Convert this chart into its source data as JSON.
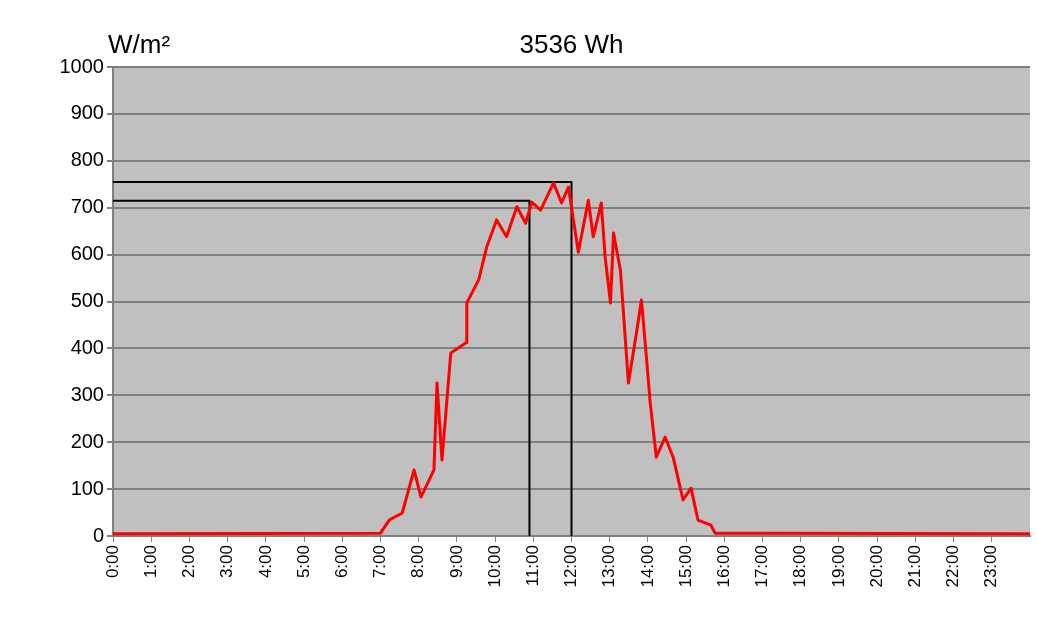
{
  "chart_data": {
    "type": "line",
    "title": "3536 Wh",
    "ylabel": "W/m²",
    "xlim": [
      0,
      24
    ],
    "xticks": [
      {
        "value": 0,
        "label": "0:00"
      },
      {
        "value": 1,
        "label": "1:00"
      },
      {
        "value": 2,
        "label": "2:00"
      },
      {
        "value": 3,
        "label": "3:00"
      },
      {
        "value": 4,
        "label": "4:00"
      },
      {
        "value": 5,
        "label": "5:00"
      },
      {
        "value": 6,
        "label": "6:00"
      },
      {
        "value": 7,
        "label": "7:00"
      },
      {
        "value": 8,
        "label": "8:00"
      },
      {
        "value": 9,
        "label": "9:00"
      },
      {
        "value": 10,
        "label": "10:00"
      },
      {
        "value": 11,
        "label": "11:00"
      },
      {
        "value": 12,
        "label": "12:00"
      },
      {
        "value": 13,
        "label": "13:00"
      },
      {
        "value": 14,
        "label": "14:00"
      },
      {
        "value": 15,
        "label": "15:00"
      },
      {
        "value": 16,
        "label": "16:00"
      },
      {
        "value": 17,
        "label": "17:00"
      },
      {
        "value": 18,
        "label": "18:00"
      },
      {
        "value": 19,
        "label": "19:00"
      },
      {
        "value": 20,
        "label": "20:00"
      },
      {
        "value": 21,
        "label": "21:00"
      },
      {
        "value": 22,
        "label": "22:00"
      },
      {
        "value": 23,
        "label": "23:00"
      }
    ],
    "ylim": [
      0,
      1000
    ],
    "yticks": [
      0,
      100,
      200,
      300,
      400,
      500,
      600,
      700,
      800,
      900,
      1000
    ],
    "grid": "y",
    "marker": "none",
    "series": [
      {
        "color": "#ff0000",
        "x": [
          0,
          7.0,
          7.23,
          7.57,
          7.88,
          8.06,
          8.4,
          8.48,
          8.61,
          8.84,
          9.24,
          9.26,
          9.57,
          9.78,
          10.04,
          10.3,
          10.57,
          10.8,
          10.96,
          11.19,
          11.53,
          11.74,
          11.92,
          12.18,
          12.44,
          12.57,
          12.78,
          12.88,
          13.02,
          13.1,
          13.28,
          13.49,
          13.7,
          13.83,
          13.96,
          14.06,
          14.22,
          14.45,
          14.66,
          14.92,
          15.13,
          15.31,
          15.65,
          15.76,
          24
        ],
        "values": [
          5,
          6,
          34,
          49,
          141,
          83,
          141,
          326,
          162,
          390,
          412,
          497,
          546,
          616,
          674,
          638,
          702,
          667,
          712,
          695,
          753,
          710,
          744,
          605,
          716,
          638,
          710,
          595,
          497,
          646,
          567,
          326,
          433,
          503,
          382,
          284,
          168,
          211,
          168,
          77,
          102,
          34,
          23,
          6,
          5
        ]
      },
      {
        "type": "line",
        "color": "#000000",
        "x": [
          0,
          10.9,
          10.9
        ],
        "values": [
          715,
          715,
          0
        ]
      },
      {
        "type": "line",
        "color": "#000000",
        "x": [
          0,
          12.0,
          12.0
        ],
        "values": [
          755,
          755,
          0
        ]
      }
    ]
  }
}
